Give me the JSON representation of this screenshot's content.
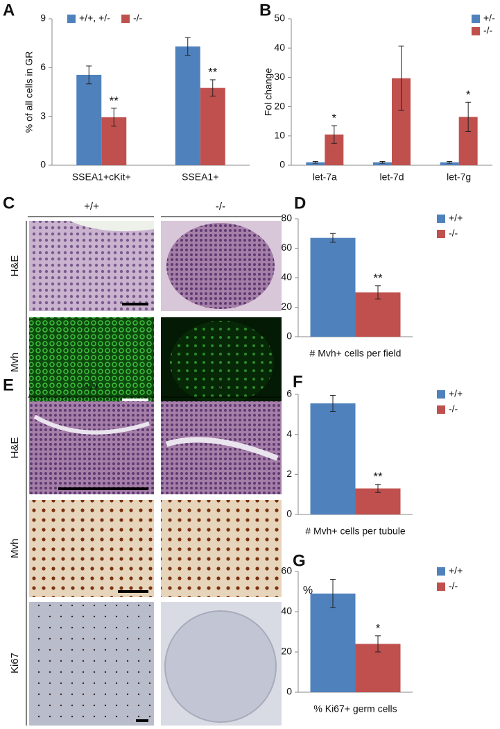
{
  "panel_letters": [
    "A",
    "B",
    "C",
    "D",
    "E",
    "F",
    "G"
  ],
  "micrographs": {
    "C": {
      "columns": [
        "+/+",
        "-/-"
      ],
      "rows": [
        "H&E",
        "Mvh"
      ]
    },
    "E": {
      "columns": [
        "+/+",
        "-/-"
      ],
      "rows": [
        "H&E",
        "Mvh",
        "Ki67"
      ]
    }
  },
  "chart_data": [
    {
      "type": "bar",
      "ylabel": "% of all cells in GR",
      "categories": [
        "SSEA1+cKit+",
        "SSEA1+"
      ],
      "series": [
        {
          "name": "+/+, +/-",
          "color": "#4f81bd",
          "values": [
            5.55,
            7.3
          ],
          "errors": [
            0.55,
            0.55
          ],
          "significance": [
            null,
            null
          ]
        },
        {
          "name": "-/-",
          "color": "#c0504d",
          "values": [
            2.95,
            4.75
          ],
          "errors": [
            0.55,
            0.5
          ],
          "significance": [
            "**",
            "**"
          ]
        }
      ],
      "ylim": [
        0,
        9
      ],
      "yticks": [
        0,
        3,
        6,
        9
      ],
      "legend": "top-left"
    },
    {
      "type": "bar",
      "ylabel": "Fol change",
      "categories": [
        "let-7a",
        "let-7d",
        "let-7g"
      ],
      "series": [
        {
          "name": "+/-",
          "color": "#4f81bd",
          "values": [
            1,
            1,
            1
          ],
          "errors": [
            0.3,
            0.3,
            0.3
          ],
          "significance": [
            null,
            null,
            null
          ]
        },
        {
          "name": "-/-",
          "color": "#c0504d",
          "values": [
            10.5,
            29.7,
            16.5
          ],
          "errors": [
            3,
            11,
            5
          ],
          "significance": [
            "*",
            null,
            "*"
          ]
        }
      ],
      "ylim": [
        0,
        50
      ],
      "yticks": [
        0,
        10,
        20,
        30,
        40,
        50
      ],
      "legend": "top-right"
    },
    {
      "type": "bar",
      "xlabel": "# Mvh+ cells per field",
      "categories": [
        null
      ],
      "series": [
        {
          "name": "+/+",
          "color": "#4f81bd",
          "values": [
            67
          ],
          "errors": [
            3
          ],
          "significance": [
            null
          ]
        },
        {
          "name": "-/-",
          "color": "#c0504d",
          "values": [
            30
          ],
          "errors": [
            4.5
          ],
          "significance": [
            "**"
          ]
        }
      ],
      "ylim": [
        0,
        80
      ],
      "yticks": [
        0,
        20,
        40,
        60,
        80
      ],
      "legend": "right"
    },
    {
      "type": "bar",
      "xlabel": "# Mvh+ cells per tubule",
      "categories": [
        null
      ],
      "series": [
        {
          "name": "+/+",
          "color": "#4f81bd",
          "values": [
            5.55
          ],
          "errors": [
            0.4
          ],
          "significance": [
            null
          ]
        },
        {
          "name": "-/-",
          "color": "#c0504d",
          "values": [
            1.3
          ],
          "errors": [
            0.2
          ],
          "significance": [
            "**"
          ]
        }
      ],
      "ylim": [
        0,
        6
      ],
      "yticks": [
        0,
        2,
        4,
        6
      ],
      "legend": "right"
    },
    {
      "type": "bar",
      "ylabel": "%",
      "xlabel": "% Ki67+ germ cells",
      "categories": [
        null
      ],
      "series": [
        {
          "name": "+/+",
          "color": "#4f81bd",
          "values": [
            49
          ],
          "errors": [
            7
          ],
          "significance": [
            null
          ]
        },
        {
          "name": "-/-",
          "color": "#c0504d",
          "values": [
            24
          ],
          "errors": [
            4
          ],
          "significance": [
            "*"
          ]
        }
      ],
      "ylim": [
        0,
        60
      ],
      "yticks": [
        0,
        20,
        40,
        60
      ],
      "legend": "right"
    }
  ]
}
